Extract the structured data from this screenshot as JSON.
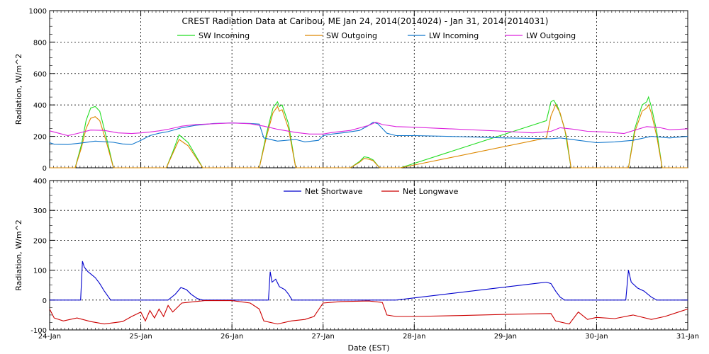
{
  "chart_data": [
    {
      "type": "line",
      "title": "CREST Radiation Data at Caribou, ME   Jan 24, 2014(2014024) - Jan 31, 2014(2014031)",
      "ylabel": "Radiation, W/m^2",
      "ylim": [
        0,
        1000
      ],
      "yticks": [
        0,
        200,
        400,
        600,
        800,
        1000
      ],
      "xlim": [
        0,
        7
      ],
      "grid": true,
      "legend": "top",
      "series": [
        {
          "name": "SW Incoming",
          "color": "#22dd22",
          "points": [
            [
              0.0,
              0
            ],
            [
              0.28,
              0
            ],
            [
              0.35,
              150
            ],
            [
              0.4,
              300
            ],
            [
              0.45,
              380
            ],
            [
              0.5,
              390
            ],
            [
              0.55,
              360
            ],
            [
              0.62,
              200
            ],
            [
              0.7,
              0
            ],
            [
              1.28,
              0
            ],
            [
              1.35,
              100
            ],
            [
              1.42,
              210
            ],
            [
              1.47,
              185
            ],
            [
              1.52,
              160
            ],
            [
              1.6,
              80
            ],
            [
              1.68,
              0
            ],
            [
              2.3,
              0
            ],
            [
              2.38,
              220
            ],
            [
              2.45,
              380
            ],
            [
              2.5,
              420
            ],
            [
              2.52,
              390
            ],
            [
              2.55,
              400
            ],
            [
              2.62,
              280
            ],
            [
              2.7,
              0
            ],
            [
              3.3,
              0
            ],
            [
              3.4,
              40
            ],
            [
              3.45,
              70
            ],
            [
              3.5,
              65
            ],
            [
              3.55,
              50
            ],
            [
              3.62,
              0
            ],
            [
              3.85,
              0
            ],
            [
              5.45,
              300
            ],
            [
              5.5,
              420
            ],
            [
              5.53,
              430
            ],
            [
              5.58,
              380
            ],
            [
              5.65,
              250
            ],
            [
              5.72,
              0
            ],
            [
              6.35,
              0
            ],
            [
              6.42,
              250
            ],
            [
              6.5,
              400
            ],
            [
              6.55,
              420
            ],
            [
              6.57,
              450
            ],
            [
              6.6,
              390
            ],
            [
              6.66,
              230
            ],
            [
              6.72,
              0
            ],
            [
              7.0,
              0
            ]
          ]
        },
        {
          "name": "SW Outgoing",
          "color": "#dd8800",
          "points": [
            [
              0.0,
              0
            ],
            [
              0.28,
              0
            ],
            [
              0.35,
              130
            ],
            [
              0.4,
              250
            ],
            [
              0.45,
              315
            ],
            [
              0.5,
              325
            ],
            [
              0.55,
              300
            ],
            [
              0.62,
              170
            ],
            [
              0.7,
              0
            ],
            [
              1.28,
              0
            ],
            [
              1.35,
              90
            ],
            [
              1.42,
              180
            ],
            [
              1.47,
              160
            ],
            [
              1.52,
              140
            ],
            [
              1.6,
              70
            ],
            [
              1.68,
              0
            ],
            [
              2.3,
              0
            ],
            [
              2.38,
              200
            ],
            [
              2.45,
              350
            ],
            [
              2.5,
              390
            ],
            [
              2.52,
              360
            ],
            [
              2.55,
              370
            ],
            [
              2.62,
              250
            ],
            [
              2.7,
              0
            ],
            [
              3.3,
              0
            ],
            [
              3.4,
              35
            ],
            [
              3.45,
              60
            ],
            [
              3.5,
              55
            ],
            [
              3.55,
              45
            ],
            [
              3.62,
              0
            ],
            [
              3.85,
              0
            ],
            [
              5.45,
              190
            ],
            [
              5.5,
              330
            ],
            [
              5.55,
              400
            ],
            [
              5.6,
              350
            ],
            [
              5.67,
              200
            ],
            [
              5.72,
              0
            ],
            [
              6.35,
              0
            ],
            [
              6.42,
              230
            ],
            [
              6.5,
              360
            ],
            [
              6.55,
              380
            ],
            [
              6.57,
              400
            ],
            [
              6.6,
              350
            ],
            [
              6.66,
              200
            ],
            [
              6.72,
              0
            ],
            [
              7.0,
              0
            ]
          ]
        },
        {
          "name": "LW Incoming",
          "color": "#1177cc",
          "points": [
            [
              0.0,
              160
            ],
            [
              0.05,
              150
            ],
            [
              0.2,
              148
            ],
            [
              0.35,
              158
            ],
            [
              0.5,
              170
            ],
            [
              0.7,
              162
            ],
            [
              0.8,
              152
            ],
            [
              0.9,
              148
            ],
            [
              1.0,
              175
            ],
            [
              1.1,
              205
            ],
            [
              1.2,
              220
            ],
            [
              1.3,
              230
            ],
            [
              1.45,
              255
            ],
            [
              1.6,
              270
            ],
            [
              1.8,
              282
            ],
            [
              2.0,
              285
            ],
            [
              2.2,
              282
            ],
            [
              2.3,
              278
            ],
            [
              2.35,
              190
            ],
            [
              2.5,
              170
            ],
            [
              2.7,
              180
            ],
            [
              2.8,
              165
            ],
            [
              2.95,
              175
            ],
            [
              3.0,
              205
            ],
            [
              3.1,
              215
            ],
            [
              3.25,
              225
            ],
            [
              3.4,
              238
            ],
            [
              3.5,
              270
            ],
            [
              3.55,
              290
            ],
            [
              3.6,
              280
            ],
            [
              3.7,
              220
            ],
            [
              3.8,
              205
            ],
            [
              4.0,
              205
            ],
            [
              4.5,
              198
            ],
            [
              5.0,
              190
            ],
            [
              5.5,
              185
            ],
            [
              5.6,
              190
            ],
            [
              5.8,
              175
            ],
            [
              6.0,
              160
            ],
            [
              6.2,
              165
            ],
            [
              6.4,
              175
            ],
            [
              6.6,
              200
            ],
            [
              6.8,
              190
            ],
            [
              7.0,
              200
            ]
          ]
        },
        {
          "name": "LW Outgoing",
          "color": "#dd22dd",
          "points": [
            [
              0.0,
              235
            ],
            [
              0.1,
              220
            ],
            [
              0.2,
              205
            ],
            [
              0.3,
              218
            ],
            [
              0.45,
              240
            ],
            [
              0.6,
              238
            ],
            [
              0.75,
              222
            ],
            [
              0.9,
              218
            ],
            [
              1.0,
              222
            ],
            [
              1.1,
              228
            ],
            [
              1.2,
              235
            ],
            [
              1.3,
              245
            ],
            [
              1.45,
              265
            ],
            [
              1.6,
              275
            ],
            [
              1.8,
              280
            ],
            [
              2.0,
              285
            ],
            [
              2.2,
              280
            ],
            [
              2.35,
              265
            ],
            [
              2.5,
              245
            ],
            [
              2.7,
              225
            ],
            [
              2.85,
              215
            ],
            [
              3.0,
              215
            ],
            [
              3.1,
              225
            ],
            [
              3.3,
              238
            ],
            [
              3.5,
              270
            ],
            [
              3.58,
              290
            ],
            [
              3.65,
              275
            ],
            [
              3.8,
              262
            ],
            [
              4.0,
              258
            ],
            [
              4.5,
              245
            ],
            [
              5.0,
              232
            ],
            [
              5.3,
              222
            ],
            [
              5.5,
              232
            ],
            [
              5.6,
              255
            ],
            [
              5.75,
              245
            ],
            [
              5.9,
              232
            ],
            [
              6.1,
              228
            ],
            [
              6.3,
              218
            ],
            [
              6.45,
              245
            ],
            [
              6.55,
              262
            ],
            [
              6.7,
              255
            ],
            [
              6.8,
              242
            ],
            [
              7.0,
              248
            ]
          ]
        }
      ]
    },
    {
      "type": "line",
      "title": "",
      "xlabel": "Date (EST)",
      "ylabel": "Radiation, W/m^2",
      "ylim": [
        -100,
        400
      ],
      "yticks": [
        -100,
        0,
        100,
        200,
        300,
        400
      ],
      "xlim": [
        0,
        7
      ],
      "xticks": [
        "24-Jan",
        "25-Jan",
        "26-Jan",
        "27-Jan",
        "28-Jan",
        "29-Jan",
        "30-Jan",
        "31-Jan"
      ],
      "grid": true,
      "legend": "top",
      "series": [
        {
          "name": "Net Shortwave",
          "color": "#0000cc",
          "points": [
            [
              0.0,
              0
            ],
            [
              0.34,
              0
            ],
            [
              0.36,
              130
            ],
            [
              0.38,
              110
            ],
            [
              0.42,
              95
            ],
            [
              0.5,
              75
            ],
            [
              0.55,
              55
            ],
            [
              0.6,
              30
            ],
            [
              0.67,
              0
            ],
            [
              1.3,
              0
            ],
            [
              1.38,
              20
            ],
            [
              1.44,
              42
            ],
            [
              1.5,
              35
            ],
            [
              1.55,
              20
            ],
            [
              1.62,
              5
            ],
            [
              1.68,
              0
            ],
            [
              2.4,
              0
            ],
            [
              2.42,
              95
            ],
            [
              2.44,
              60
            ],
            [
              2.48,
              70
            ],
            [
              2.52,
              45
            ],
            [
              2.58,
              35
            ],
            [
              2.62,
              20
            ],
            [
              2.66,
              0
            ],
            [
              3.8,
              0
            ],
            [
              5.45,
              60
            ],
            [
              5.5,
              55
            ],
            [
              5.55,
              30
            ],
            [
              5.6,
              10
            ],
            [
              5.65,
              0
            ],
            [
              6.32,
              0
            ],
            [
              6.35,
              100
            ],
            [
              6.38,
              60
            ],
            [
              6.45,
              40
            ],
            [
              6.52,
              30
            ],
            [
              6.6,
              10
            ],
            [
              6.66,
              0
            ],
            [
              7.0,
              0
            ]
          ]
        },
        {
          "name": "Net Longwave",
          "color": "#cc0000",
          "points": [
            [
              0.0,
              -30
            ],
            [
              0.05,
              -60
            ],
            [
              0.15,
              -70
            ],
            [
              0.3,
              -60
            ],
            [
              0.45,
              -72
            ],
            [
              0.6,
              -80
            ],
            [
              0.8,
              -72
            ],
            [
              0.9,
              -55
            ],
            [
              1.0,
              -40
            ],
            [
              1.05,
              -70
            ],
            [
              1.1,
              -35
            ],
            [
              1.15,
              -60
            ],
            [
              1.2,
              -30
            ],
            [
              1.25,
              -55
            ],
            [
              1.3,
              -18
            ],
            [
              1.35,
              -40
            ],
            [
              1.45,
              -10
            ],
            [
              1.6,
              -5
            ],
            [
              1.7,
              -2
            ],
            [
              2.0,
              -2
            ],
            [
              2.2,
              -10
            ],
            [
              2.3,
              -30
            ],
            [
              2.35,
              -70
            ],
            [
              2.5,
              -80
            ],
            [
              2.65,
              -70
            ],
            [
              2.8,
              -65
            ],
            [
              2.9,
              -55
            ],
            [
              3.0,
              -10
            ],
            [
              3.2,
              -5
            ],
            [
              3.5,
              -3
            ],
            [
              3.65,
              -8
            ],
            [
              3.7,
              -50
            ],
            [
              3.8,
              -55
            ],
            [
              4.0,
              -55
            ],
            [
              4.5,
              -52
            ],
            [
              5.0,
              -48
            ],
            [
              5.5,
              -45
            ],
            [
              5.55,
              -70
            ],
            [
              5.7,
              -80
            ],
            [
              5.8,
              -40
            ],
            [
              5.9,
              -65
            ],
            [
              6.0,
              -58
            ],
            [
              6.2,
              -62
            ],
            [
              6.4,
              -50
            ],
            [
              6.6,
              -65
            ],
            [
              6.75,
              -55
            ],
            [
              6.9,
              -40
            ],
            [
              7.0,
              -30
            ]
          ]
        }
      ]
    }
  ]
}
